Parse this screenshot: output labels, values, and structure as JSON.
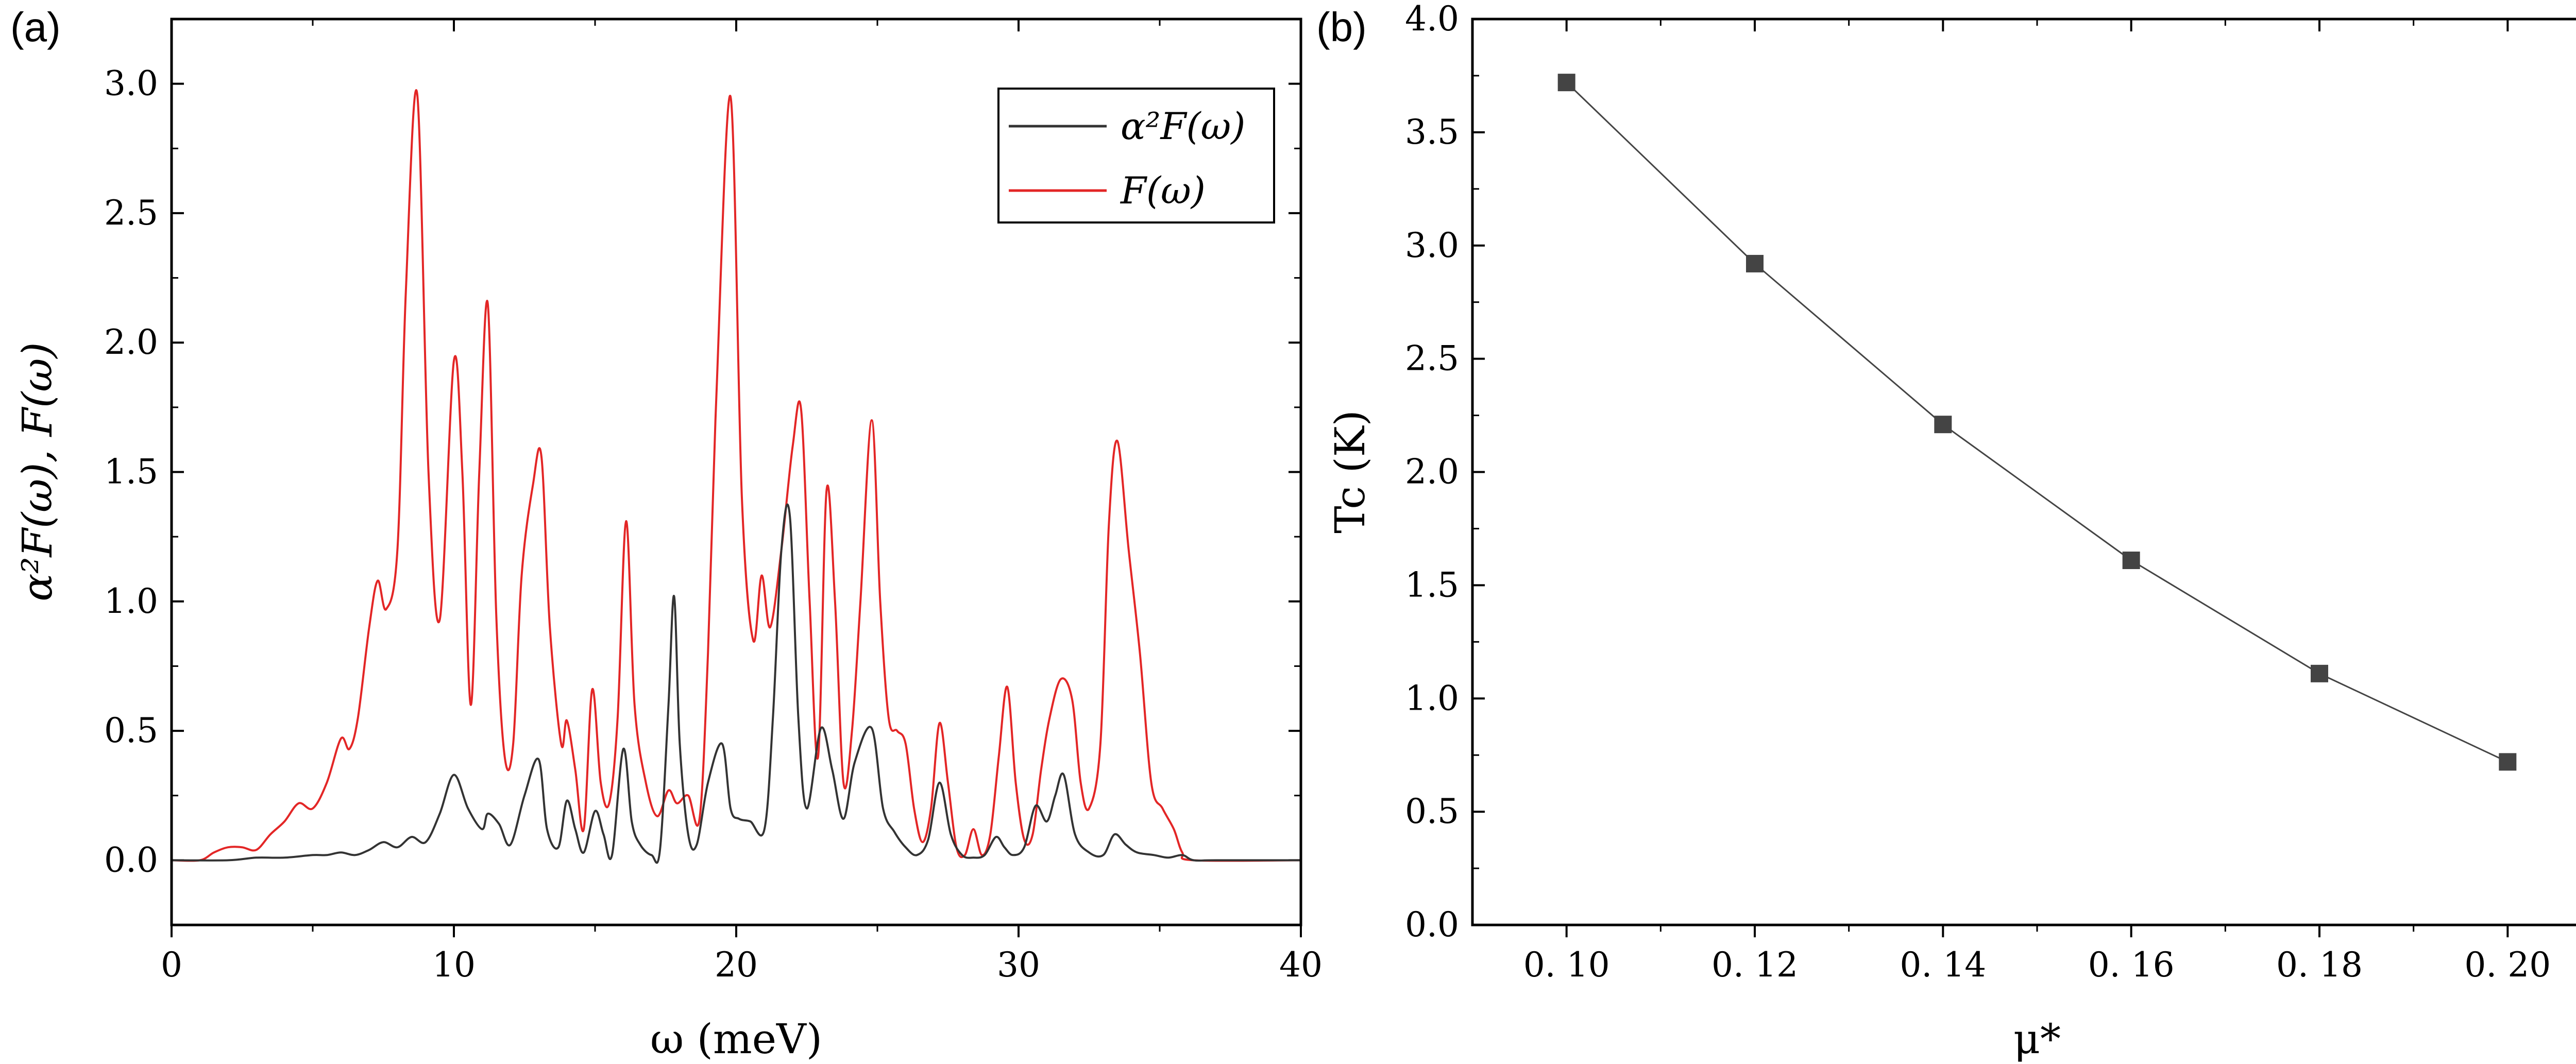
{
  "chart_data": [
    {
      "panel": "(a)",
      "type": "line",
      "xlabel": "ω (meV)",
      "ylabel": "α²F(ω),  F(ω)",
      "xlim": [
        0,
        40
      ],
      "ylim": [
        -0.25,
        3.25
      ],
      "xticks": [
        0,
        10,
        20,
        30,
        40
      ],
      "xtick_labels": [
        "0",
        "10",
        "20",
        "30",
        "40"
      ],
      "yticks": [
        0,
        0.5,
        1,
        1.5,
        2,
        2.5,
        3
      ],
      "ytick_labels": [
        "0.0",
        "0.5",
        "1.0",
        "1.5",
        "2.0",
        "2.5",
        "3.0"
      ],
      "legend": {
        "position": "top-right",
        "entries": [
          "α²F(ω)",
          "F(ω)"
        ]
      },
      "series": [
        {
          "name": "α²F(ω)",
          "color": "#333333",
          "x": [
            0,
            2,
            3,
            4,
            5,
            5.5,
            6,
            6.5,
            7,
            7.5,
            8,
            8.5,
            9,
            9.5,
            10,
            10.5,
            11,
            11.2,
            11.6,
            12,
            12.5,
            13,
            13.3,
            13.7,
            14,
            14.3,
            14.6,
            15,
            15.3,
            15.6,
            16,
            16.3,
            16.6,
            17,
            17.3,
            17.6,
            17.8,
            18,
            18.3,
            18.6,
            19,
            19.5,
            19.8,
            20.1,
            20.5,
            21,
            21.3,
            21.6,
            21.9,
            22.2,
            22.5,
            23,
            23.4,
            23.8,
            24.2,
            24.8,
            25.2,
            25.6,
            26,
            26.4,
            26.8,
            27.2,
            27.6,
            28,
            28.4,
            28.8,
            29.2,
            29.5,
            29.8,
            30.2,
            30.6,
            31,
            31.3,
            31.6,
            32,
            32.5,
            33,
            33.4,
            33.8,
            34.2,
            34.8,
            35.3,
            35.8,
            36.2,
            37,
            40
          ],
          "y": [
            0,
            0,
            0.01,
            0.01,
            0.02,
            0.02,
            0.03,
            0.02,
            0.04,
            0.07,
            0.05,
            0.09,
            0.07,
            0.18,
            0.33,
            0.2,
            0.12,
            0.18,
            0.14,
            0.06,
            0.25,
            0.39,
            0.12,
            0.05,
            0.23,
            0.12,
            0.03,
            0.19,
            0.1,
            0.02,
            0.43,
            0.15,
            0.06,
            0.02,
            0.04,
            0.6,
            1.02,
            0.45,
            0.1,
            0.06,
            0.3,
            0.45,
            0.2,
            0.16,
            0.15,
            0.12,
            0.55,
            1.2,
            1.33,
            0.55,
            0.2,
            0.51,
            0.35,
            0.16,
            0.38,
            0.51,
            0.2,
            0.11,
            0.05,
            0.02,
            0.08,
            0.3,
            0.1,
            0.02,
            0.01,
            0.02,
            0.09,
            0.05,
            0.02,
            0.05,
            0.21,
            0.15,
            0.25,
            0.33,
            0.1,
            0.03,
            0.02,
            0.1,
            0.06,
            0.03,
            0.02,
            0.01,
            0.02,
            0,
            0,
            0
          ]
        },
        {
          "name": "F(ω)",
          "color": "#e32626",
          "x": [
            0,
            1,
            1.5,
            2,
            2.5,
            3,
            3.5,
            4,
            4.5,
            5,
            5.5,
            6,
            6.3,
            6.6,
            7,
            7.3,
            7.6,
            8,
            8.3,
            8.7,
            9.1,
            9.5,
            10,
            10.3,
            10.6,
            10.9,
            11.2,
            11.5,
            11.8,
            12.1,
            12.4,
            12.8,
            13.1,
            13.4,
            13.8,
            14,
            14.3,
            14.6,
            14.9,
            15.2,
            15.5,
            15.8,
            16.1,
            16.4,
            16.8,
            17.2,
            17.6,
            17.9,
            18.3,
            18.7,
            19,
            19.3,
            19.8,
            20.2,
            20.6,
            20.9,
            21.2,
            21.6,
            22,
            22.3,
            22.6,
            22.9,
            23.2,
            23.5,
            23.8,
            24.1,
            24.4,
            24.8,
            25.1,
            25.4,
            25.7,
            26,
            26.3,
            26.6,
            26.9,
            27.2,
            27.5,
            27.8,
            28.1,
            28.4,
            28.7,
            29,
            29.3,
            29.6,
            29.9,
            30.2,
            30.5,
            30.8,
            31.1,
            31.5,
            31.9,
            32.2,
            32.5,
            32.9,
            33.2,
            33.5,
            33.9,
            34.3,
            34.7,
            35.1,
            35.5,
            35.8,
            36.2,
            40
          ],
          "y": [
            0,
            0,
            0.03,
            0.05,
            0.05,
            0.04,
            0.1,
            0.15,
            0.22,
            0.2,
            0.3,
            0.47,
            0.43,
            0.55,
            0.9,
            1.08,
            0.97,
            1.2,
            2.2,
            2.96,
            1.5,
            0.93,
            1.93,
            1.5,
            0.6,
            1.5,
            2.15,
            0.95,
            0.4,
            0.45,
            1.1,
            1.45,
            1.56,
            0.9,
            0.45,
            0.54,
            0.35,
            0.12,
            0.66,
            0.3,
            0.22,
            0.55,
            1.31,
            0.6,
            0.3,
            0.17,
            0.27,
            0.22,
            0.25,
            0.16,
            0.8,
            1.8,
            2.95,
            1.4,
            0.85,
            1.1,
            0.9,
            1.2,
            1.6,
            1.74,
            1.0,
            0.4,
            1.43,
            1.0,
            0.3,
            0.5,
            1.0,
            1.7,
            1.0,
            0.55,
            0.5,
            0.45,
            0.2,
            0.07,
            0.2,
            0.53,
            0.3,
            0.05,
            0.02,
            0.12,
            0.02,
            0.1,
            0.4,
            0.67,
            0.3,
            0.08,
            0.1,
            0.35,
            0.55,
            0.7,
            0.62,
            0.3,
            0.2,
            0.45,
            1.3,
            1.62,
            1.2,
            0.8,
            0.3,
            0.2,
            0.12,
            0.03,
            0,
            0
          ]
        }
      ]
    },
    {
      "panel": "(b)",
      "type": "line",
      "xlabel": "μ*",
      "ylabel": "Tc (K)",
      "xlim": [
        0.09,
        0.21
      ],
      "ylim": [
        0,
        4.0
      ],
      "xticks": [
        0.1,
        0.12,
        0.14,
        0.16,
        0.18,
        0.2
      ],
      "xtick_labels": [
        "0. 10",
        "0. 12",
        "0. 14",
        "0. 16",
        "0. 18",
        "0. 20"
      ],
      "yticks": [
        0,
        0.5,
        1.0,
        1.5,
        2.0,
        2.5,
        3.0,
        3.5,
        4.0
      ],
      "ytick_labels": [
        "0.0",
        "0.5",
        "1.0",
        "1.5",
        "2.0",
        "2.5",
        "3.0",
        "3.5",
        "4.0"
      ],
      "series": [
        {
          "name": "Tc",
          "color": "#444444",
          "marker": "square",
          "x": [
            0.1,
            0.12,
            0.14,
            0.16,
            0.18,
            0.2
          ],
          "y": [
            3.72,
            2.92,
            2.21,
            1.61,
            1.11,
            0.72
          ]
        }
      ]
    }
  ]
}
